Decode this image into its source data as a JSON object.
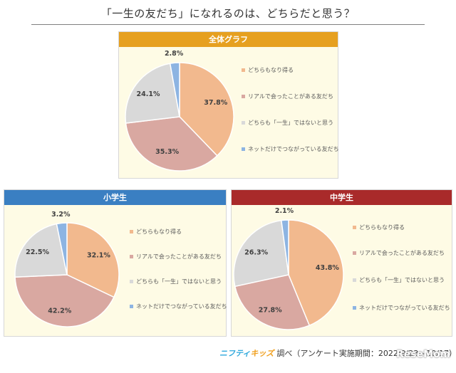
{
  "title": "「一生の友だち」になれるのは、どちらだと思う？",
  "footer": {
    "logo_part1": "ニフティ",
    "logo_part2": "キッズ",
    "text": "調べ（アンケート実施期間：2022/9/23〜10/17）"
  },
  "watermark": "ReseMom",
  "colors": [
    "#f2b98e",
    "#d9a8a1",
    "#d9d9d9",
    "#8db4e2"
  ],
  "chart_data": [
    {
      "type": "pie",
      "title": "全体グラフ",
      "categories": [
        "どちらもなり得る",
        "リアルで会ったことがある友だち",
        "どちらも「一生」ではないと思う",
        "ネットだけでつながっている友だち"
      ],
      "values": [
        37.8,
        35.3,
        24.1,
        2.8
      ],
      "labels": [
        "37.8%",
        "35.3%",
        "24.1%",
        "2.8%"
      ],
      "legend": "right"
    },
    {
      "type": "pie",
      "title": "小学生",
      "categories": [
        "どちらもなり得る",
        "リアルで会ったことがある友だち",
        "どちらも「一生」ではないと思う",
        "ネットだけでつながっている友だち"
      ],
      "values": [
        32.1,
        42.2,
        22.5,
        3.2
      ],
      "labels": [
        "32.1%",
        "42.2%",
        "22.5%",
        "3.2%"
      ],
      "legend": "right"
    },
    {
      "type": "pie",
      "title": "中学生",
      "categories": [
        "どちらもなり得る",
        "リアルで会ったことがある友だち",
        "どちらも「一生」ではないと思う",
        "ネットだけでつながっている友だち"
      ],
      "values": [
        43.8,
        27.8,
        26.3,
        2.1
      ],
      "labels": [
        "43.8%",
        "27.8%",
        "26.3%",
        "2.1%"
      ],
      "legend": "right"
    }
  ]
}
